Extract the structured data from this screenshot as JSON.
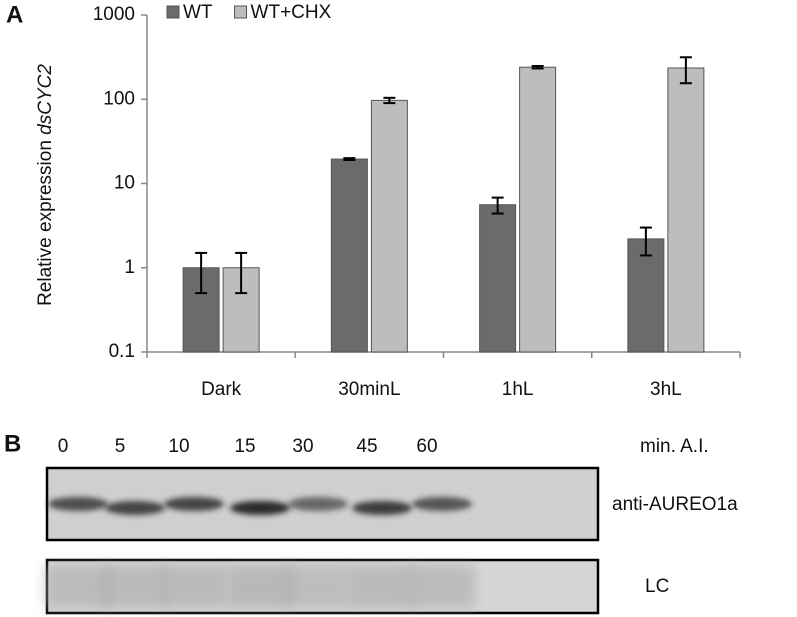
{
  "chart_data": {
    "type": "bar",
    "panel_label": "A",
    "y_label": "Relative expression",
    "y_label_gene": "dsCYC2",
    "categories": [
      "Dark",
      "30minL",
      "1hL",
      "3hL"
    ],
    "series": [
      {
        "name": "WT",
        "color": "#6b6b6b",
        "values": [
          1,
          19.5,
          5.6,
          2.2
        ],
        "errors": [
          0.5,
          0.5,
          1.2,
          0.8
        ]
      },
      {
        "name": "WT+CHX",
        "color": "#bdbdbd",
        "values": [
          1,
          97,
          240,
          235
        ],
        "errors": [
          0.5,
          7,
          8,
          80
        ]
      }
    ],
    "ylim": [
      0.1,
      1000
    ],
    "yticks": [
      0.1,
      1,
      10,
      100,
      1000
    ],
    "log_scale": true,
    "grid": false,
    "legend": "top"
  },
  "blot": {
    "panel_label": "B",
    "lanes": [
      "0",
      "5",
      "10",
      "15",
      "30",
      "45",
      "60"
    ],
    "lane_unit": "min. A.I.",
    "rows": [
      "anti-AUREO1a",
      "LC"
    ]
  }
}
